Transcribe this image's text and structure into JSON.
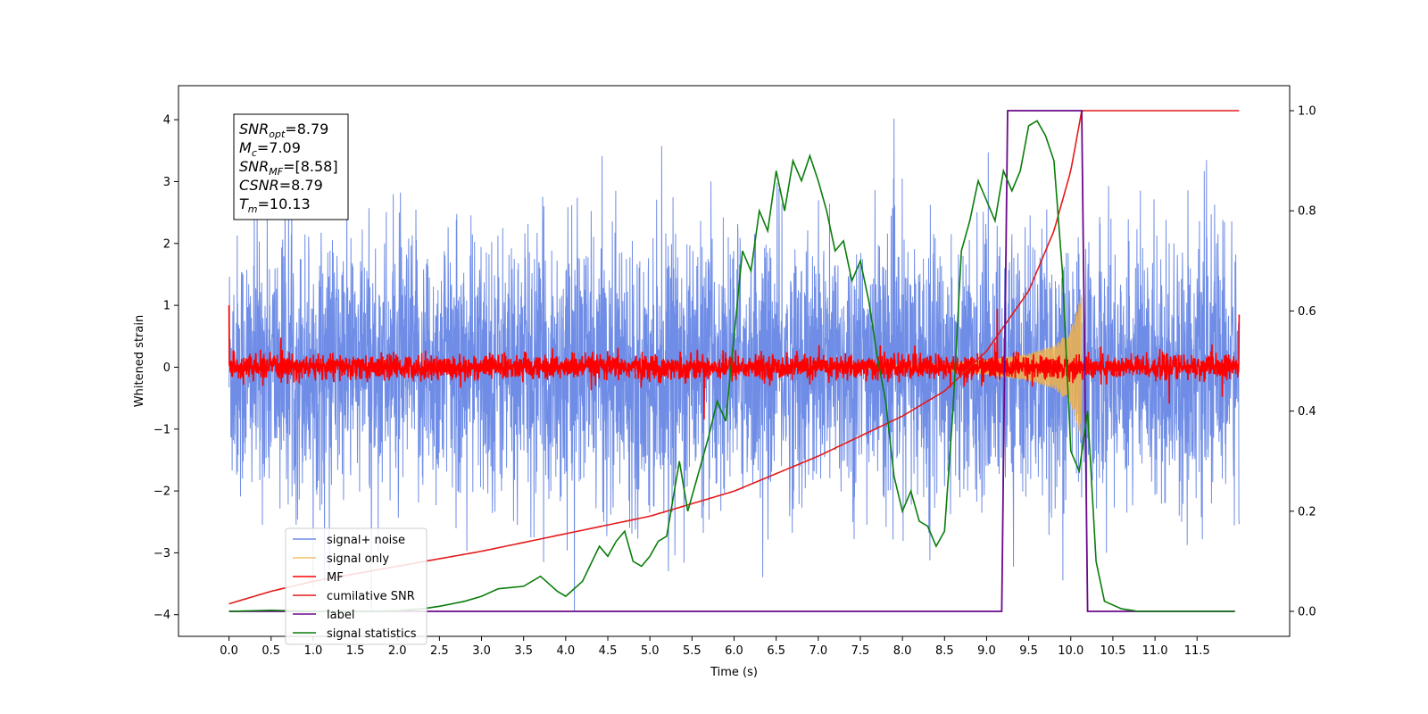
{
  "chart_data": {
    "type": "line",
    "xlabel": "Time (s)",
    "ylabel": "Whitened strain",
    "xlim": [
      -0.6,
      12.6
    ],
    "ylim": [
      -4.35,
      4.55
    ],
    "ylim_right": [
      -0.05,
      1.05
    ],
    "x_ticks": [
      "0.0",
      "0.5",
      "1.0",
      "1.5",
      "2.0",
      "2.5",
      "3.0",
      "3.5",
      "4.0",
      "4.5",
      "5.0",
      "5.5",
      "6.0",
      "6.5",
      "7.0",
      "7.5",
      "8.0",
      "8.5",
      "9.0",
      "9.5",
      "10.0",
      "10.5",
      "11.0",
      "11.5"
    ],
    "y_ticks": [
      "4",
      "3",
      "2",
      "1",
      "0",
      "−1",
      "−2",
      "−3",
      "−4"
    ],
    "y_ticks_right": [
      "1.0",
      "0.8",
      "0.6",
      "0.4",
      "0.2",
      "0.0"
    ],
    "grid": false,
    "legend_position": "lower-left",
    "colors": {
      "signal_noise": "#6f8de6",
      "signal_only": "#f0b24a",
      "mf": "#ff0000",
      "cumulative_snr": "#e31a1a",
      "label": "#6a0a8a",
      "signal_statistics": "#0a7d0a"
    },
    "annotations": [
      {
        "math": "SNR",
        "sub": "opt",
        "text": "=8.79"
      },
      {
        "math": "M",
        "sub": "c",
        "text": "=7.09"
      },
      {
        "math": "SNR",
        "sub": "MF",
        "text": "=[8.58]"
      },
      {
        "math": "CSNR",
        "sub": "",
        "text": "=8.79"
      },
      {
        "math": "T",
        "sub": "m",
        "text": "=10.13"
      }
    ],
    "series": [
      {
        "name": "signal+ noise",
        "axis": "left",
        "x_range": [
          0.0,
          12.0
        ],
        "amplitude_typical": 2.2,
        "peak_max": 4.17,
        "peak_min": -3.95
      },
      {
        "name": "signal only",
        "axis": "left",
        "x_range": [
          0.0,
          10.13
        ],
        "envelope_x": [
          8.5,
          9.0,
          9.5,
          9.8,
          10.0,
          10.13
        ],
        "envelope_y": [
          0.05,
          0.12,
          0.22,
          0.35,
          0.6,
          1.2
        ]
      },
      {
        "name": "MF",
        "axis": "left",
        "x_range": [
          0.0,
          12.0
        ],
        "amplitude_typical": 0.15,
        "start_value": 1.0,
        "end_value": 0.85
      },
      {
        "name": "cumilative SNR",
        "axis": "right",
        "x": [
          0.0,
          0.5,
          1.0,
          2.0,
          3.0,
          4.0,
          5.0,
          6.0,
          7.0,
          8.0,
          8.5,
          9.0,
          9.5,
          9.8,
          10.0,
          10.13,
          12.0
        ],
        "y": [
          0.015,
          0.04,
          0.06,
          0.09,
          0.12,
          0.155,
          0.19,
          0.24,
          0.31,
          0.39,
          0.44,
          0.52,
          0.64,
          0.76,
          0.88,
          1.0,
          1.0
        ]
      },
      {
        "name": "label",
        "axis": "right",
        "x": [
          0.0,
          9.18,
          9.25,
          10.13,
          10.2,
          11.95
        ],
        "y": [
          0.0,
          0.0,
          1.0,
          1.0,
          0.0,
          0.0
        ]
      },
      {
        "name": "signal statistics",
        "axis": "right",
        "x": [
          0.0,
          0.25,
          0.5,
          1.0,
          1.5,
          2.0,
          2.3,
          2.5,
          2.8,
          3.0,
          3.2,
          3.5,
          3.7,
          3.9,
          4.0,
          4.2,
          4.4,
          4.5,
          4.6,
          4.7,
          4.8,
          4.9,
          5.0,
          5.1,
          5.2,
          5.35,
          5.45,
          5.55,
          5.7,
          5.8,
          5.9,
          6.0,
          6.1,
          6.2,
          6.3,
          6.4,
          6.5,
          6.6,
          6.7,
          6.8,
          6.9,
          7.0,
          7.1,
          7.2,
          7.3,
          7.4,
          7.5,
          7.6,
          7.7,
          7.8,
          7.9,
          8.0,
          8.1,
          8.2,
          8.3,
          8.4,
          8.5,
          8.6,
          8.7,
          8.8,
          8.9,
          9.0,
          9.1,
          9.2,
          9.3,
          9.4,
          9.5,
          9.6,
          9.7,
          9.8,
          9.9,
          10.0,
          10.1,
          10.2,
          10.3,
          10.4,
          10.6,
          10.8,
          11.0,
          11.5,
          11.95
        ],
        "y": [
          0.0,
          0.001,
          0.002,
          0.0,
          0.0,
          0.001,
          0.005,
          0.01,
          0.02,
          0.03,
          0.045,
          0.05,
          0.07,
          0.04,
          0.03,
          0.06,
          0.13,
          0.11,
          0.14,
          0.16,
          0.1,
          0.09,
          0.11,
          0.14,
          0.15,
          0.3,
          0.2,
          0.26,
          0.35,
          0.42,
          0.38,
          0.55,
          0.72,
          0.68,
          0.8,
          0.76,
          0.88,
          0.8,
          0.9,
          0.86,
          0.91,
          0.86,
          0.8,
          0.72,
          0.74,
          0.66,
          0.7,
          0.62,
          0.51,
          0.42,
          0.27,
          0.2,
          0.24,
          0.18,
          0.17,
          0.13,
          0.16,
          0.4,
          0.72,
          0.78,
          0.86,
          0.82,
          0.78,
          0.88,
          0.84,
          0.88,
          0.97,
          0.98,
          0.95,
          0.9,
          0.68,
          0.32,
          0.28,
          0.4,
          0.1,
          0.02,
          0.005,
          0.0,
          0.0,
          0.0,
          0.0
        ]
      }
    ]
  }
}
